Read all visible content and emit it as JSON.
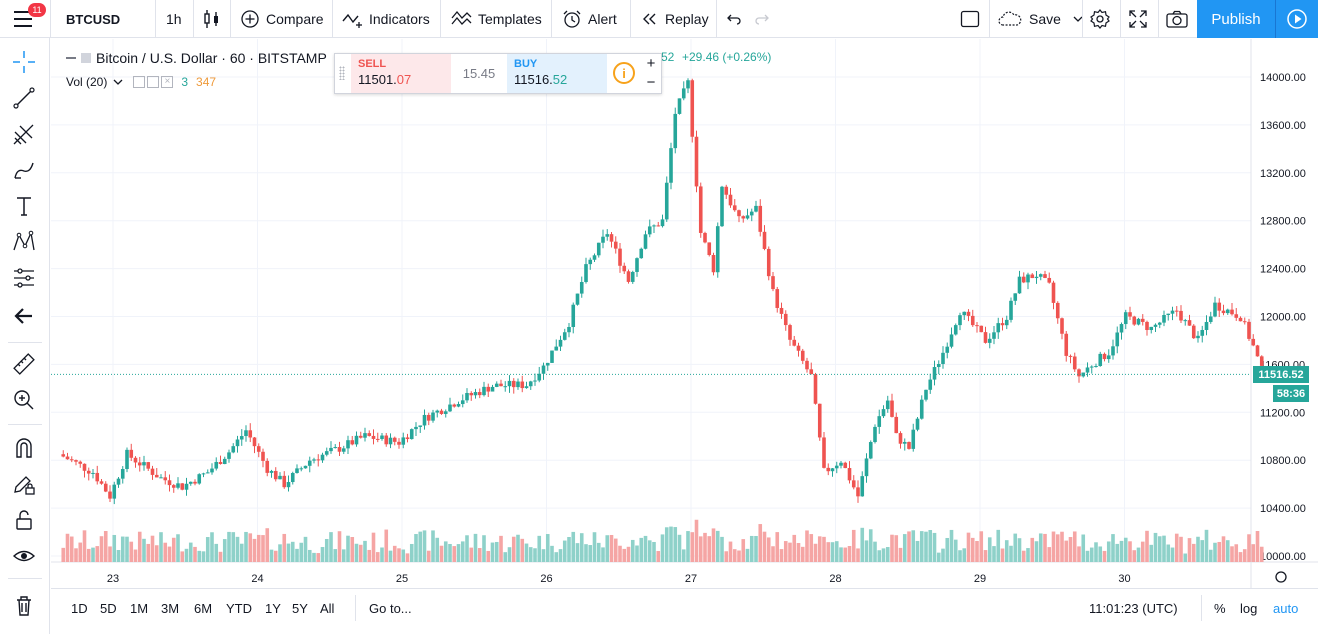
{
  "topbar": {
    "notification_count": "11",
    "symbol": "BTCUSD",
    "interval": "1h",
    "compare": "Compare",
    "indicators": "Indicators",
    "templates": "Templates",
    "alert": "Alert",
    "replay": "Replay",
    "save": "Save",
    "publish": "Publish"
  },
  "legend": {
    "title": "Bitcoin / U.S. Dollar · 60 · BITSTAMP",
    "change_suffix": "52",
    "change": "+29.46 (+0.26%)",
    "vol_label": "Vol (20)",
    "vol_value_a": "3",
    "vol_value_b": "347"
  },
  "trade_panel": {
    "sell_label": "SELL",
    "sell_price_main": "11501.",
    "sell_price_frac": "07",
    "spread": "15.45",
    "buy_label": "BUY",
    "buy_price_main": "11516.",
    "buy_price_frac": "52"
  },
  "price_axis": {
    "ticks": [
      "14000.00",
      "13600.00",
      "13200.00",
      "12800.00",
      "12400.00",
      "12000.00",
      "11600.00",
      "11200.00",
      "10800.00",
      "10400.00",
      "10000.00"
    ],
    "current_price": "11516.52",
    "countdown": "58:36"
  },
  "time_axis": {
    "ticks": [
      "23",
      "24",
      "25",
      "26",
      "27",
      "28",
      "29",
      "30"
    ]
  },
  "bottombar": {
    "ranges": [
      "1D",
      "5D",
      "1M",
      "3M",
      "6M",
      "YTD",
      "1Y",
      "5Y",
      "All"
    ],
    "goto": "Go to...",
    "time": "11:01:23 (UTC)",
    "percent": "%",
    "log": "log",
    "auto": "auto"
  },
  "colors": {
    "up": "#26a69a",
    "down": "#ef5350",
    "accent": "#2196f3"
  },
  "chart_data": {
    "type": "candlestick",
    "ylim": [
      9950,
      14200
    ],
    "x_ticks": [
      "23",
      "24",
      "25",
      "26",
      "27",
      "28",
      "29",
      "30"
    ],
    "keypoints": [
      [
        0,
        10850
      ],
      [
        8,
        10700
      ],
      [
        12,
        10500
      ],
      [
        16,
        10850
      ],
      [
        24,
        10650
      ],
      [
        29,
        10580
      ],
      [
        35,
        10700
      ],
      [
        40,
        10870
      ],
      [
        44,
        11050
      ],
      [
        49,
        10730
      ],
      [
        53,
        10600
      ],
      [
        59,
        10800
      ],
      [
        66,
        10900
      ],
      [
        72,
        11000
      ],
      [
        80,
        10950
      ],
      [
        86,
        11150
      ],
      [
        94,
        11300
      ],
      [
        102,
        11420
      ],
      [
        110,
        11430
      ],
      [
        114,
        11580
      ],
      [
        120,
        11950
      ],
      [
        124,
        12400
      ],
      [
        129,
        12700
      ],
      [
        134,
        12300
      ],
      [
        138,
        12700
      ],
      [
        142,
        12800
      ],
      [
        145,
        13700
      ],
      [
        148,
        13950
      ],
      [
        151,
        12700
      ],
      [
        154,
        12400
      ],
      [
        156,
        13100
      ],
      [
        160,
        12800
      ],
      [
        164,
        12900
      ],
      [
        168,
        12200
      ],
      [
        172,
        11800
      ],
      [
        177,
        11500
      ],
      [
        180,
        10700
      ],
      [
        184,
        10800
      ],
      [
        188,
        10500
      ],
      [
        192,
        11100
      ],
      [
        195,
        11300
      ],
      [
        197,
        11000
      ],
      [
        200,
        10900
      ],
      [
        204,
        11400
      ],
      [
        208,
        11700
      ],
      [
        212,
        12050
      ],
      [
        218,
        11800
      ],
      [
        223,
        12000
      ],
      [
        226,
        12300
      ],
      [
        230,
        12350
      ],
      [
        233,
        12250
      ],
      [
        237,
        11700
      ],
      [
        240,
        11500
      ],
      [
        243,
        11600
      ],
      [
        247,
        11700
      ],
      [
        251,
        12000
      ],
      [
        257,
        11900
      ],
      [
        263,
        12050
      ],
      [
        268,
        11800
      ],
      [
        272,
        12100
      ],
      [
        275,
        12050
      ],
      [
        278,
        12000
      ],
      [
        281,
        11750
      ],
      [
        283,
        11550
      ]
    ],
    "volume_max": 1000
  }
}
